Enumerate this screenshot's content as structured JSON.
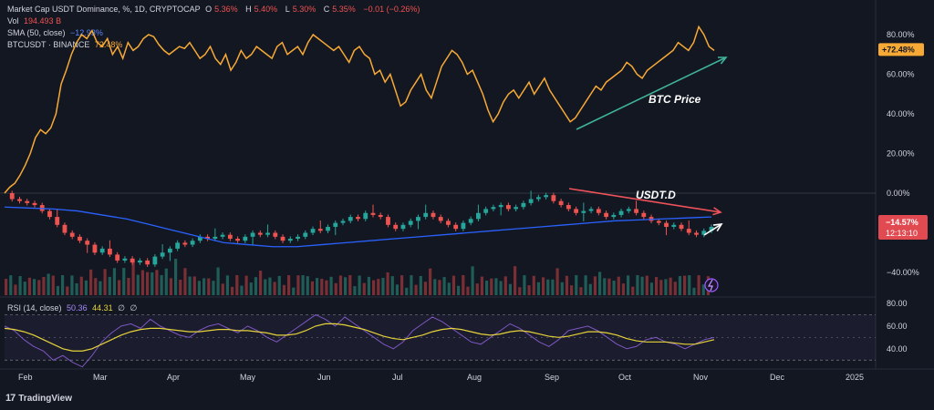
{
  "legend": {
    "title": "Market Cap USDT Dominance, %, 1D, CRYPTOCAP",
    "o_label": "O",
    "o_value": "5.36%",
    "h_label": "H",
    "h_value": "5.40%",
    "l_label": "L",
    "l_value": "5.30%",
    "c_label": "C",
    "c_value": "5.35%",
    "change": "−0.01 (−0.26%)",
    "vol_label": "Vol",
    "vol_value": "194.493 B",
    "sma_label": "SMA (50, close)",
    "sma_value": "−12.93%",
    "btc_label": "BTCUSDT · BINANCE",
    "btc_value": "72.48%"
  },
  "rsi_legend": {
    "label": "RSI (14, close)",
    "v1": "50.36",
    "v2": "44.31",
    "v3": "∅",
    "v4": "∅"
  },
  "brand": "TradingView",
  "colors": {
    "background": "#131722",
    "btc": "#f7a935",
    "up": "#26a69a",
    "down": "#ef5350",
    "sma": "#2962ff",
    "rsi": "#7e57c2",
    "rsi_ma": "#e6d33a",
    "annotation_up": "#3fb39a",
    "annotation_down": "#f0525a",
    "white": "#ffffff"
  },
  "chart_data": {
    "type": "line",
    "title": "Market Cap USDT Dominance, %, 1D, CRYPTOCAP",
    "x_axis": {
      "ticks": [
        "Feb",
        "Mar",
        "Apr",
        "May",
        "Jun",
        "Jul",
        "Aug",
        "Sep",
        "Oct",
        "Nov",
        "Dec",
        "2025"
      ]
    },
    "y_axis_main": {
      "ticks": [
        "80.00%",
        "60.00%",
        "40.00%",
        "20.00%",
        "0.00%",
        "−40.00%"
      ],
      "range_pct": [
        -50,
        90
      ]
    },
    "y_axis_rsi": {
      "ticks": [
        "80.00",
        "60.00",
        "40.00"
      ],
      "range": [
        15,
        85
      ]
    },
    "series": [
      {
        "name": "BTCUSDT · BINANCE",
        "values_pct": [
          0,
          3,
          5,
          9,
          14,
          20,
          28,
          32,
          30,
          33,
          40,
          55,
          62,
          70,
          76,
          80,
          78,
          82,
          76,
          74,
          78,
          70,
          74,
          68,
          76,
          72,
          74,
          78,
          80,
          79,
          75,
          72,
          70,
          72,
          74,
          73,
          76,
          72,
          68,
          70,
          74,
          68,
          65,
          70,
          62,
          66,
          72,
          68,
          70,
          74,
          72,
          70,
          68,
          74,
          76,
          70,
          72,
          74,
          70,
          76,
          80,
          78,
          76,
          74,
          72,
          74,
          70,
          66,
          72,
          74,
          70,
          68,
          60,
          62,
          56,
          60,
          52,
          44,
          46,
          52,
          56,
          60,
          52,
          48,
          56,
          64,
          68,
          72,
          70,
          66,
          60,
          62,
          56,
          50,
          42,
          36,
          40,
          46,
          50,
          52,
          48,
          52,
          56,
          50,
          54,
          58,
          52,
          48,
          44,
          40,
          36,
          38,
          42,
          46,
          50,
          54,
          52,
          56,
          58,
          60,
          62,
          66,
          64,
          60,
          58,
          62,
          64,
          66,
          68,
          70,
          72,
          76,
          74,
          72,
          76,
          84,
          80,
          74,
          72
        ]
      },
      {
        "name": "Market Cap USDT Dominance (normalized)",
        "values_pct": [
          0,
          -3,
          -4,
          -5,
          -6,
          -9,
          -12,
          -16,
          -20,
          -22,
          -24,
          -26,
          -30,
          -28,
          -31,
          -34,
          -33,
          -35,
          -34,
          -36,
          -32,
          -30,
          -28,
          -25,
          -26,
          -24,
          -22,
          -23,
          -22,
          -21,
          -23,
          -24,
          -22,
          -20,
          -21,
          -20,
          -22,
          -24,
          -23,
          -22,
          -20,
          -18,
          -19,
          -17,
          -15,
          -14,
          -12,
          -13,
          -10,
          -11,
          -12,
          -16,
          -18,
          -16,
          -14,
          -12,
          -10,
          -12,
          -14,
          -16,
          -18,
          -15,
          -13,
          -10,
          -8,
          -7,
          -6,
          -8,
          -7,
          -5,
          -3,
          -2,
          -1,
          -4,
          -6,
          -8,
          -10,
          -9,
          -8,
          -10,
          -12,
          -11,
          -9,
          -8,
          -10,
          -12,
          -14,
          -15,
          -17,
          -16,
          -18,
          -20,
          -21,
          -19,
          -17
        ]
      },
      {
        "name": "SMA (50, close)",
        "values_pct": [
          -7,
          -7.5,
          -8,
          -9,
          -11,
          -13,
          -16,
          -19,
          -22,
          -25,
          -26,
          -27,
          -27,
          -26,
          -25,
          -24,
          -23,
          -22,
          -21,
          -20,
          -19,
          -18,
          -17,
          -16,
          -15,
          -14,
          -13.5,
          -13,
          -12.5,
          -12
        ]
      },
      {
        "name": "RSI (14, close)",
        "values": [
          60,
          56,
          48,
          42,
          38,
          30,
          34,
          28,
          24,
          34,
          46,
          54,
          60,
          62,
          58,
          66,
          60,
          56,
          52,
          50,
          56,
          60,
          62,
          58,
          54,
          60,
          56,
          50,
          46,
          52,
          58,
          64,
          70,
          66,
          60,
          68,
          62,
          56,
          50,
          44,
          40,
          46,
          56,
          62,
          68,
          64,
          58,
          52,
          46,
          44,
          50,
          56,
          62,
          58,
          52,
          46,
          42,
          48,
          56,
          58,
          60,
          56,
          50,
          44,
          40,
          42,
          48,
          50,
          46,
          44,
          40,
          44,
          48,
          50
        ]
      },
      {
        "name": "RSI MA",
        "values": [
          58,
          57,
          55,
          52,
          48,
          44,
          40,
          38,
          38,
          40,
          44,
          48,
          52,
          55,
          57,
          58,
          58,
          57,
          56,
          55,
          55,
          56,
          57,
          57,
          56,
          56,
          55,
          54,
          52,
          52,
          53,
          56,
          60,
          62,
          62,
          61,
          59,
          57,
          54,
          51,
          49,
          48,
          50,
          52,
          55,
          57,
          58,
          57,
          55,
          53,
          52,
          53,
          55,
          56,
          55,
          53,
          51,
          50,
          51,
          53,
          55,
          55,
          54,
          52,
          49,
          47,
          46,
          46,
          46,
          45,
          44,
          44,
          46,
          48
        ]
      }
    ],
    "annotations": [
      {
        "text": "BTC Price"
      },
      {
        "text": "USDT.D"
      }
    ],
    "price_labels": {
      "btc": "+72.48%",
      "usdt": "−14.57%",
      "timer": "12:13:10"
    }
  }
}
